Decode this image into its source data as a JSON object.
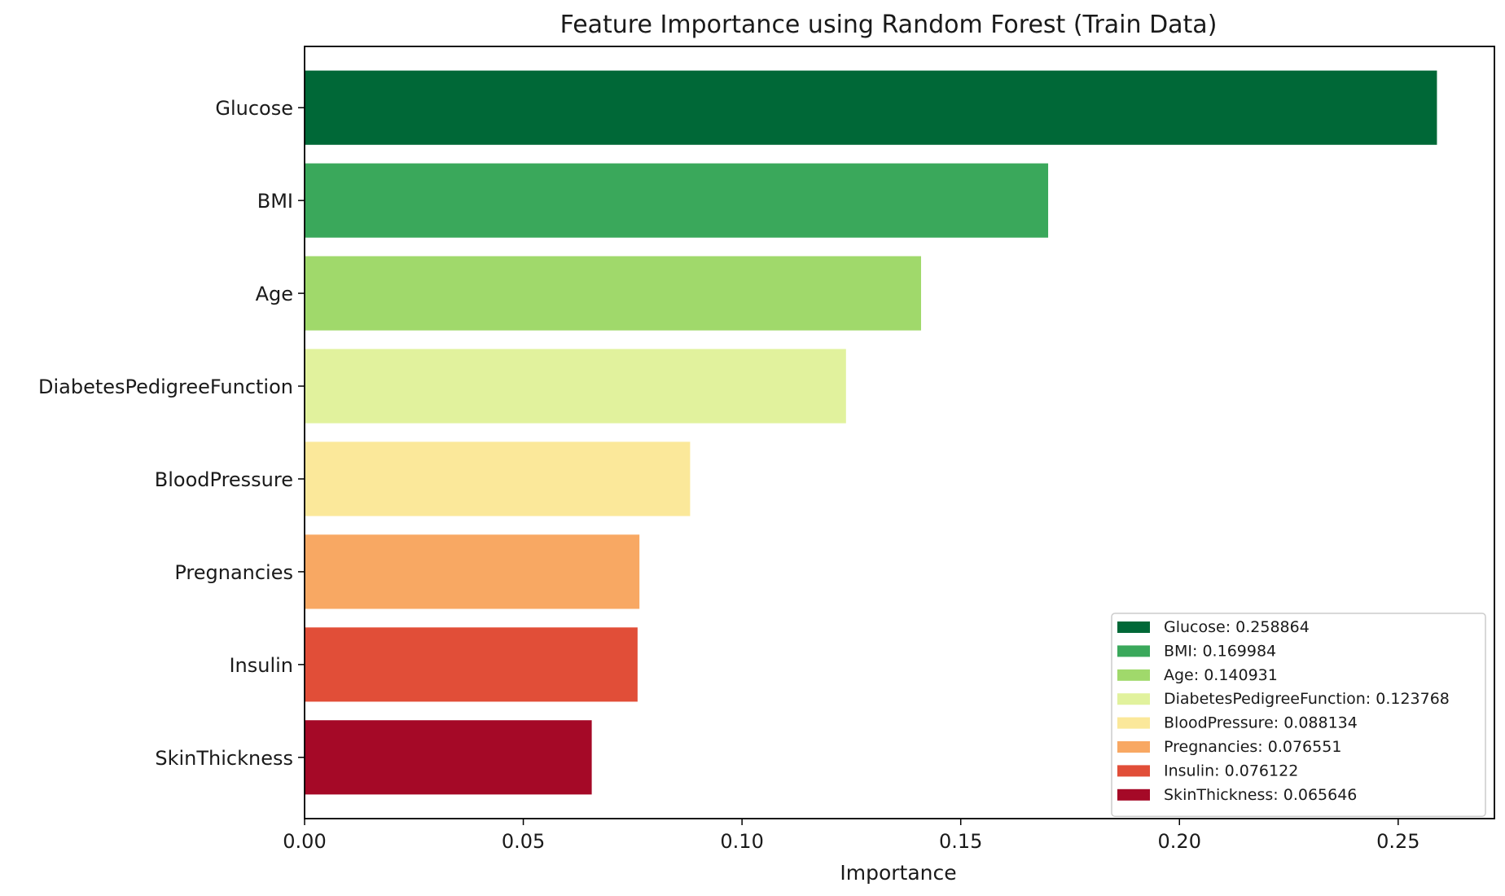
{
  "chart_data": {
    "type": "bar",
    "orientation": "horizontal",
    "title": "Feature Importance using Random Forest (Train Data)",
    "xlabel": "Importance",
    "ylabel": "",
    "xlim": [
      0,
      0.272
    ],
    "xticks": [
      {
        "value": 0.0,
        "label": "0.00"
      },
      {
        "value": 0.05,
        "label": "0.05"
      },
      {
        "value": 0.1,
        "label": "0.10"
      },
      {
        "value": 0.15,
        "label": "0.15"
      },
      {
        "value": 0.2,
        "label": "0.20"
      },
      {
        "value": 0.25,
        "label": "0.25"
      }
    ],
    "grid": false,
    "legend_position": "bottom-right",
    "categories": [
      "Glucose",
      "BMI",
      "Age",
      "DiabetesPedigreeFunction",
      "BloodPressure",
      "Pregnancies",
      "Insulin",
      "SkinThickness"
    ],
    "values": [
      0.258864,
      0.169984,
      0.140931,
      0.123768,
      0.088134,
      0.076551,
      0.076122,
      0.065646
    ],
    "colors": [
      "#006837",
      "#3aa85b",
      "#a0d96b",
      "#e1f29d",
      "#fbe89a",
      "#f8a863",
      "#e14e38",
      "#a50927"
    ],
    "legend_entries": [
      "Glucose: 0.258864",
      "BMI: 0.169984",
      "Age: 0.140931",
      "DiabetesPedigreeFunction: 0.123768",
      "BloodPressure: 0.088134",
      "Pregnancies: 0.076551",
      "Insulin: 0.076122",
      "SkinThickness: 0.065646"
    ]
  }
}
